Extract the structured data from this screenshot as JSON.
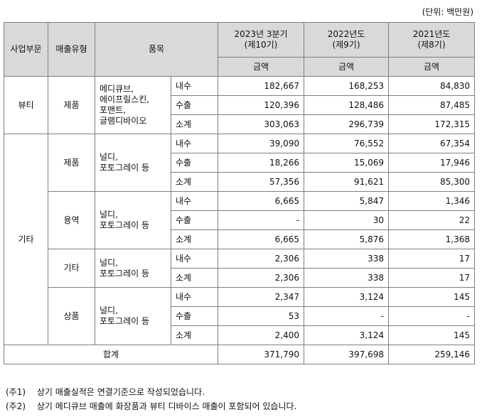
{
  "unit_label": "(단위: 백만원)",
  "headers": {
    "segment": "사업부문",
    "sales_type": "매출유형",
    "item": "품목",
    "period1": "2023년 3분기",
    "period1_sub": "(제10기)",
    "period2": "2022년도",
    "period2_sub": "(제9기)",
    "period3": "2021년도",
    "period3_sub": "(제8기)",
    "amount": "금액"
  },
  "beauty": {
    "segment": "뷰티",
    "type": "제품",
    "items": [
      "메디큐브,",
      "에이프릴스킨,",
      "포맨트,",
      "글램디바이오"
    ],
    "rows": [
      {
        "kind": "내수",
        "v1": "182,667",
        "v2": "168,253",
        "v3": "84,830"
      },
      {
        "kind": "수출",
        "v1": "120,396",
        "v2": "128,486",
        "v3": "87,485"
      },
      {
        "kind": "소계",
        "v1": "303,063",
        "v2": "296,739",
        "v3": "172,315"
      }
    ]
  },
  "other": {
    "segment": "기타",
    "groups": [
      {
        "type": "제품",
        "items": [
          "널디,",
          "포토그레이 등"
        ],
        "rows": [
          {
            "kind": "내수",
            "v1": "39,090",
            "v2": "76,552",
            "v3": "67,354"
          },
          {
            "kind": "수출",
            "v1": "18,266",
            "v2": "15,069",
            "v3": "17,946"
          },
          {
            "kind": "소계",
            "v1": "57,356",
            "v2": "91,621",
            "v3": "85,300"
          }
        ]
      },
      {
        "type": "용역",
        "items": [
          "널디,",
          "포토그레이 등"
        ],
        "rows": [
          {
            "kind": "내수",
            "v1": "6,665",
            "v2": "5,847",
            "v3": "1,346"
          },
          {
            "kind": "수출",
            "v1": "-",
            "v2": "30",
            "v3": "22"
          },
          {
            "kind": "소계",
            "v1": "6,665",
            "v2": "5,876",
            "v3": "1,368"
          }
        ]
      },
      {
        "type": "기타",
        "items": [
          "널디,",
          "포토그레이 등"
        ],
        "rows": [
          {
            "kind": "내수",
            "v1": "2,306",
            "v2": "338",
            "v3": "17"
          },
          {
            "kind": "소계",
            "v1": "2,306",
            "v2": "338",
            "v3": "17"
          }
        ]
      },
      {
        "type": "상품",
        "items": [
          "널디,",
          "포토그레이 등"
        ],
        "rows": [
          {
            "kind": "내수",
            "v1": "2,347",
            "v2": "3,124",
            "v3": "145"
          },
          {
            "kind": "수출",
            "v1": "53",
            "v2": "-",
            "v3": "-"
          },
          {
            "kind": "소계",
            "v1": "2,400",
            "v2": "3,124",
            "v3": "145"
          }
        ]
      }
    ]
  },
  "total": {
    "label": "합계",
    "v1": "371,790",
    "v2": "397,698",
    "v3": "259,146"
  },
  "notes": [
    {
      "label": "(주1)",
      "text": "상기 매출실적은 연결기준으로 작성되었습니다."
    },
    {
      "label": "(주2)",
      "text": "상기 메디큐브 매출에 화장품과 뷰티 디바이스 매출이 포함되어 있습니다."
    }
  ]
}
